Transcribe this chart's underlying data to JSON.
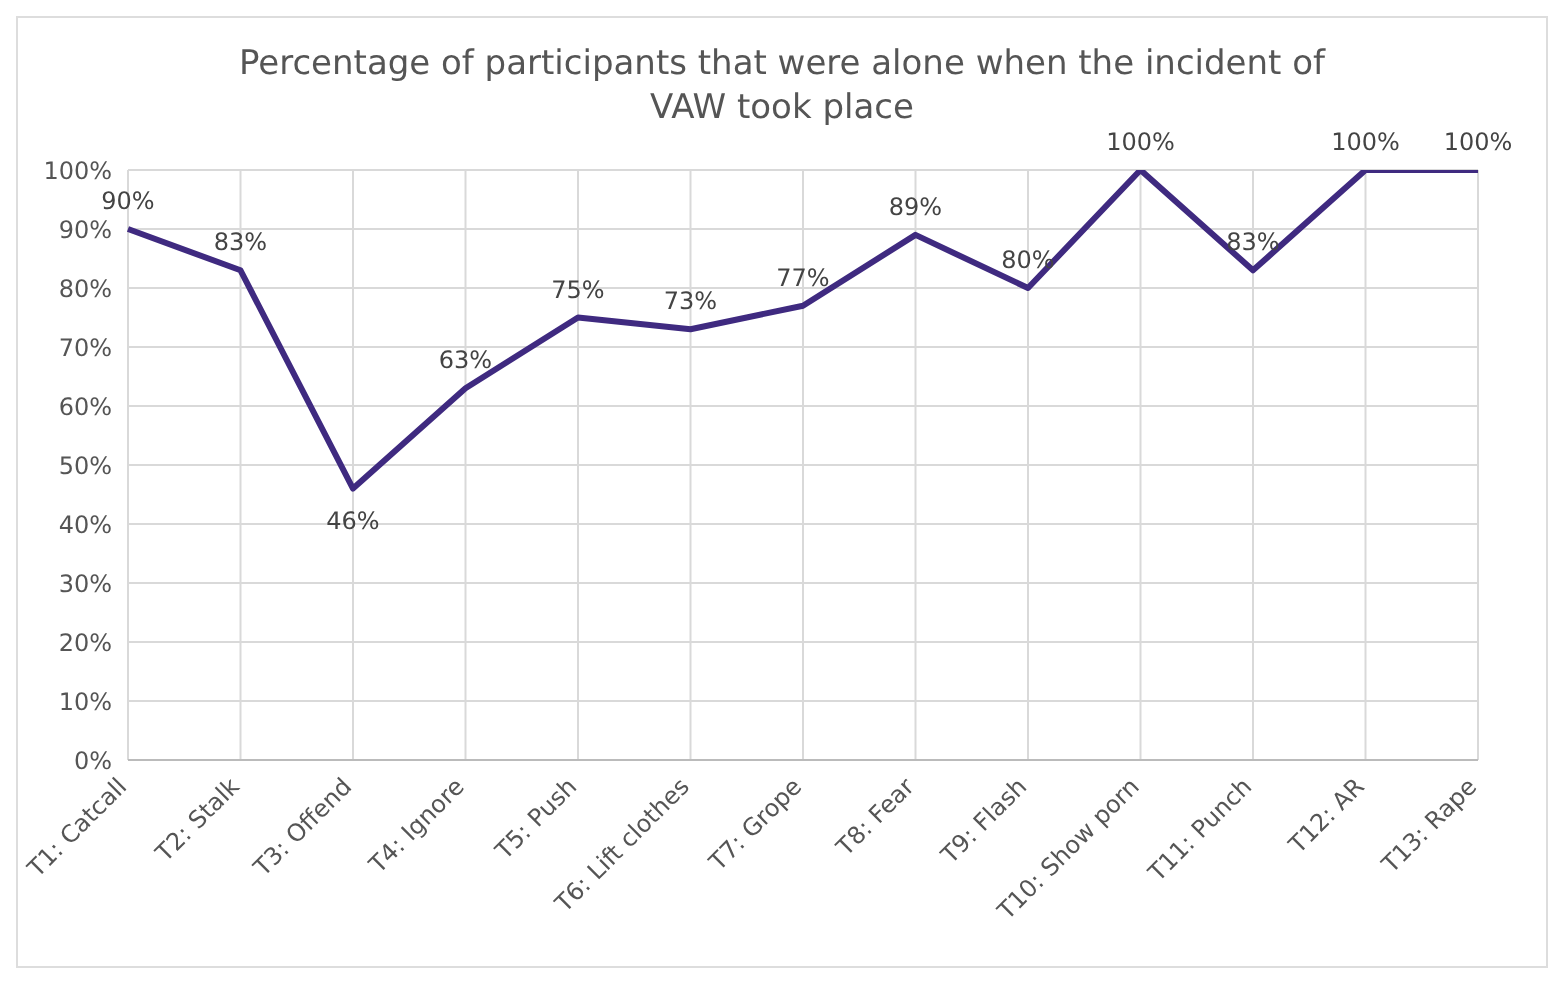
{
  "chart_data": {
    "type": "line",
    "title": "Percentage of participants that were alone when the incident of VAW took place",
    "categories": [
      "T1: Catcall",
      "T2: Stalk",
      "T3: Offend",
      "T4: Ignore",
      "T5: Push",
      "T6: Lift clothes",
      "T7: Grope",
      "T8: Fear",
      "T9: Flash",
      "T10: Show porn",
      "T11: Punch",
      "T12: AR",
      "T13: Rape"
    ],
    "series": [
      {
        "color": "#3f2a80",
        "values": [
          90,
          83,
          46,
          63,
          75,
          73,
          77,
          89,
          80,
          100,
          83,
          100,
          100
        ],
        "value_labels": [
          "90%",
          "83%",
          "46%",
          "63%",
          "75%",
          "73%",
          "77%",
          "89%",
          "80%",
          "100%",
          "83%",
          "100%",
          "100%"
        ]
      }
    ],
    "ylim": [
      0,
      100
    ],
    "yticks": [
      {
        "value": 0,
        "label": "0%"
      },
      {
        "value": 10,
        "label": "10%"
      },
      {
        "value": 20,
        "label": "20%"
      },
      {
        "value": 30,
        "label": "30%"
      },
      {
        "value": 40,
        "label": "40%"
      },
      {
        "value": 50,
        "label": "50%"
      },
      {
        "value": 60,
        "label": "60%"
      },
      {
        "value": 70,
        "label": "70%"
      },
      {
        "value": 80,
        "label": "80%"
      },
      {
        "value": 90,
        "label": "90%"
      },
      {
        "value": 100,
        "label": "100%"
      }
    ],
    "grid": true,
    "marker": "none",
    "line_style": "solid",
    "legend": false
  }
}
